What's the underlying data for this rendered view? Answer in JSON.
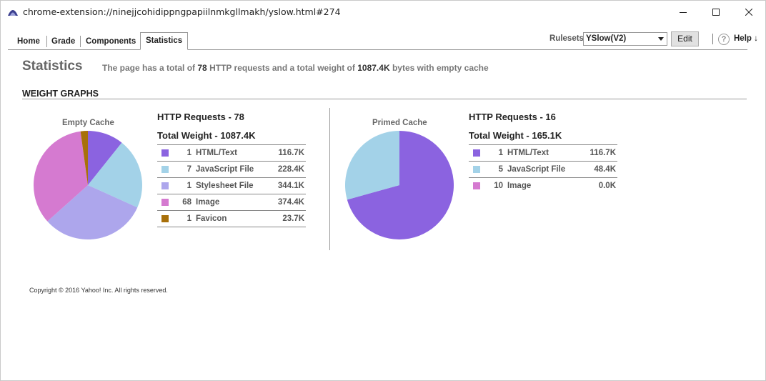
{
  "window": {
    "title": "chrome-extension://ninejjcohidippngpapiilnmkgllmakh/yslow.html#274"
  },
  "tabs": [
    {
      "label": "Home"
    },
    {
      "label": "Grade"
    },
    {
      "label": "Components"
    },
    {
      "label": "Statistics",
      "active": true
    }
  ],
  "toolbar": {
    "rulesets_label": "Rulesets",
    "ruleset_value": "YSlow(V2)",
    "edit_label": "Edit",
    "help_icon": "?",
    "help_label": "Help ↓"
  },
  "page": {
    "title": "Statistics",
    "summary_pre": "The page has a total of",
    "summary_requests": "78",
    "summary_mid": "HTTP requests and a total weight of",
    "summary_weight": "1087.4K",
    "summary_post": "bytes with empty cache"
  },
  "section": {
    "title": "WEIGHT GRAPHS"
  },
  "colors": {
    "html": "#8b63e0",
    "js": "#a3d2e8",
    "css": "#ada6ec",
    "image": "#d57ad0",
    "favicon": "#a8700a"
  },
  "empty_cache": {
    "pie_label": "Empty Cache",
    "requests_title": "HTTP Requests - 78",
    "weight_title": "Total Weight - 1087.4K",
    "rows": [
      {
        "count": "1",
        "label": "HTML/Text",
        "weight": "116.7K",
        "color": "#8b63e0"
      },
      {
        "count": "7",
        "label": "JavaScript File",
        "weight": "228.4K",
        "color": "#a3d2e8"
      },
      {
        "count": "1",
        "label": "Stylesheet File",
        "weight": "344.1K",
        "color": "#ada6ec"
      },
      {
        "count": "68",
        "label": "Image",
        "weight": "374.4K",
        "color": "#d57ad0"
      },
      {
        "count": "1",
        "label": "Favicon",
        "weight": "23.7K",
        "color": "#a8700a"
      }
    ]
  },
  "primed_cache": {
    "pie_label": "Primed Cache",
    "requests_title": "HTTP Requests - 16",
    "weight_title": "Total Weight - 165.1K",
    "rows": [
      {
        "count": "1",
        "label": "HTML/Text",
        "weight": "116.7K",
        "color": "#8b63e0"
      },
      {
        "count": "5",
        "label": "JavaScript File",
        "weight": "48.4K",
        "color": "#a3d2e8"
      },
      {
        "count": "10",
        "label": "Image",
        "weight": "0.0K",
        "color": "#d57ad0"
      }
    ]
  },
  "chart_data": [
    {
      "type": "pie",
      "title": "Empty Cache",
      "categories": [
        "HTML/Text",
        "JavaScript File",
        "Stylesheet File",
        "Image",
        "Favicon"
      ],
      "values": [
        116.7,
        228.4,
        344.1,
        374.4,
        23.7
      ],
      "colors": [
        "#8b63e0",
        "#a3d2e8",
        "#ada6ec",
        "#d57ad0",
        "#a8700a"
      ]
    },
    {
      "type": "pie",
      "title": "Primed Cache",
      "categories": [
        "HTML/Text",
        "JavaScript File",
        "Image"
      ],
      "values": [
        116.7,
        48.4,
        0.0
      ],
      "colors": [
        "#8b63e0",
        "#a3d2e8",
        "#d57ad0"
      ]
    }
  ],
  "footer": {
    "copyright": "Copyright © 2016 Yahoo! Inc. All rights reserved."
  }
}
